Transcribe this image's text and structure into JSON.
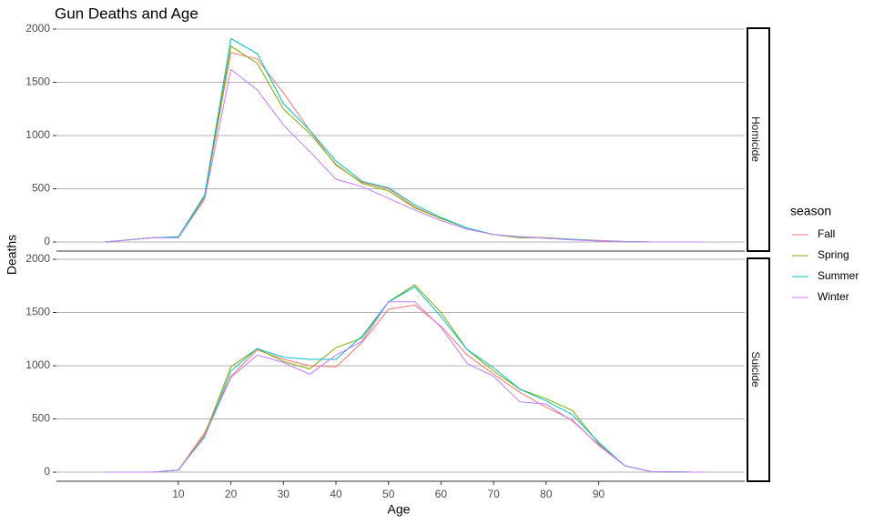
{
  "chart_data": {
    "type": "line",
    "title": "Gun Deaths and Age",
    "x_label": "Age",
    "y_label": "Deaths",
    "legend_title": "season",
    "x": [
      -4,
      5,
      10,
      15,
      20,
      25,
      30,
      35,
      40,
      45,
      50,
      55,
      60,
      65,
      70,
      75,
      80,
      85,
      90,
      95,
      100,
      110
    ],
    "xlim": [
      -13.2,
      117.8
    ],
    "xticks": [
      10,
      20,
      30,
      40,
      50,
      60,
      70,
      80,
      90
    ],
    "ylim": [
      -85,
      2017
    ],
    "yticks": [
      0,
      500,
      1000,
      1500,
      2000
    ],
    "grid": true,
    "series": [
      {
        "name": "Fall",
        "color": "#F8766D"
      },
      {
        "name": "Spring",
        "color": "#7CAE00"
      },
      {
        "name": "Summer",
        "color": "#00BFC4"
      },
      {
        "name": "Winter",
        "color": "#C77CFF"
      }
    ],
    "facets": [
      {
        "label": "Homicide",
        "series": [
          {
            "values": [
              0,
              40,
              45,
              420,
              1780,
              1720,
              1400,
              1050,
              720,
              560,
              500,
              330,
              220,
              130,
              70,
              50,
              40,
              25,
              15,
              5,
              0,
              0
            ]
          },
          {
            "values": [
              0,
              40,
              45,
              430,
              1840,
              1680,
              1250,
              1020,
              730,
              550,
              480,
              320,
              220,
              130,
              70,
              40,
              40,
              25,
              10,
              5,
              0,
              0
            ]
          },
          {
            "values": [
              0,
              40,
              50,
              440,
              1910,
              1770,
              1300,
              1050,
              760,
              570,
              510,
              350,
              230,
              130,
              70,
              50,
              35,
              25,
              10,
              5,
              0,
              0
            ]
          },
          {
            "values": [
              0,
              40,
              40,
              400,
              1620,
              1430,
              1100,
              850,
              590,
              520,
              410,
              300,
              200,
              120,
              70,
              50,
              35,
              20,
              10,
              3,
              0,
              0
            ]
          }
        ]
      },
      {
        "label": "Suicide",
        "series": [
          {
            "values": [
              0,
              0,
              20,
              370,
              900,
              1150,
              1060,
              1000,
              990,
              1220,
              1530,
              1570,
              1370,
              1100,
              920,
              750,
              610,
              490,
              250,
              60,
              5,
              0
            ]
          },
          {
            "values": [
              0,
              0,
              20,
              350,
              990,
              1160,
              1040,
              970,
              1170,
              1260,
              1600,
              1760,
              1500,
              1150,
              950,
              780,
              690,
              580,
              270,
              60,
              5,
              0
            ]
          },
          {
            "values": [
              0,
              0,
              20,
              330,
              950,
              1160,
              1080,
              1060,
              1060,
              1280,
              1600,
              1740,
              1460,
              1150,
              980,
              780,
              670,
              540,
              280,
              60,
              5,
              0
            ]
          },
          {
            "values": [
              0,
              0,
              20,
              340,
              890,
              1100,
              1030,
              920,
              1100,
              1230,
              1600,
              1600,
              1360,
              1020,
              900,
              660,
              640,
              480,
              260,
              60,
              5,
              0
            ]
          }
        ]
      }
    ]
  }
}
